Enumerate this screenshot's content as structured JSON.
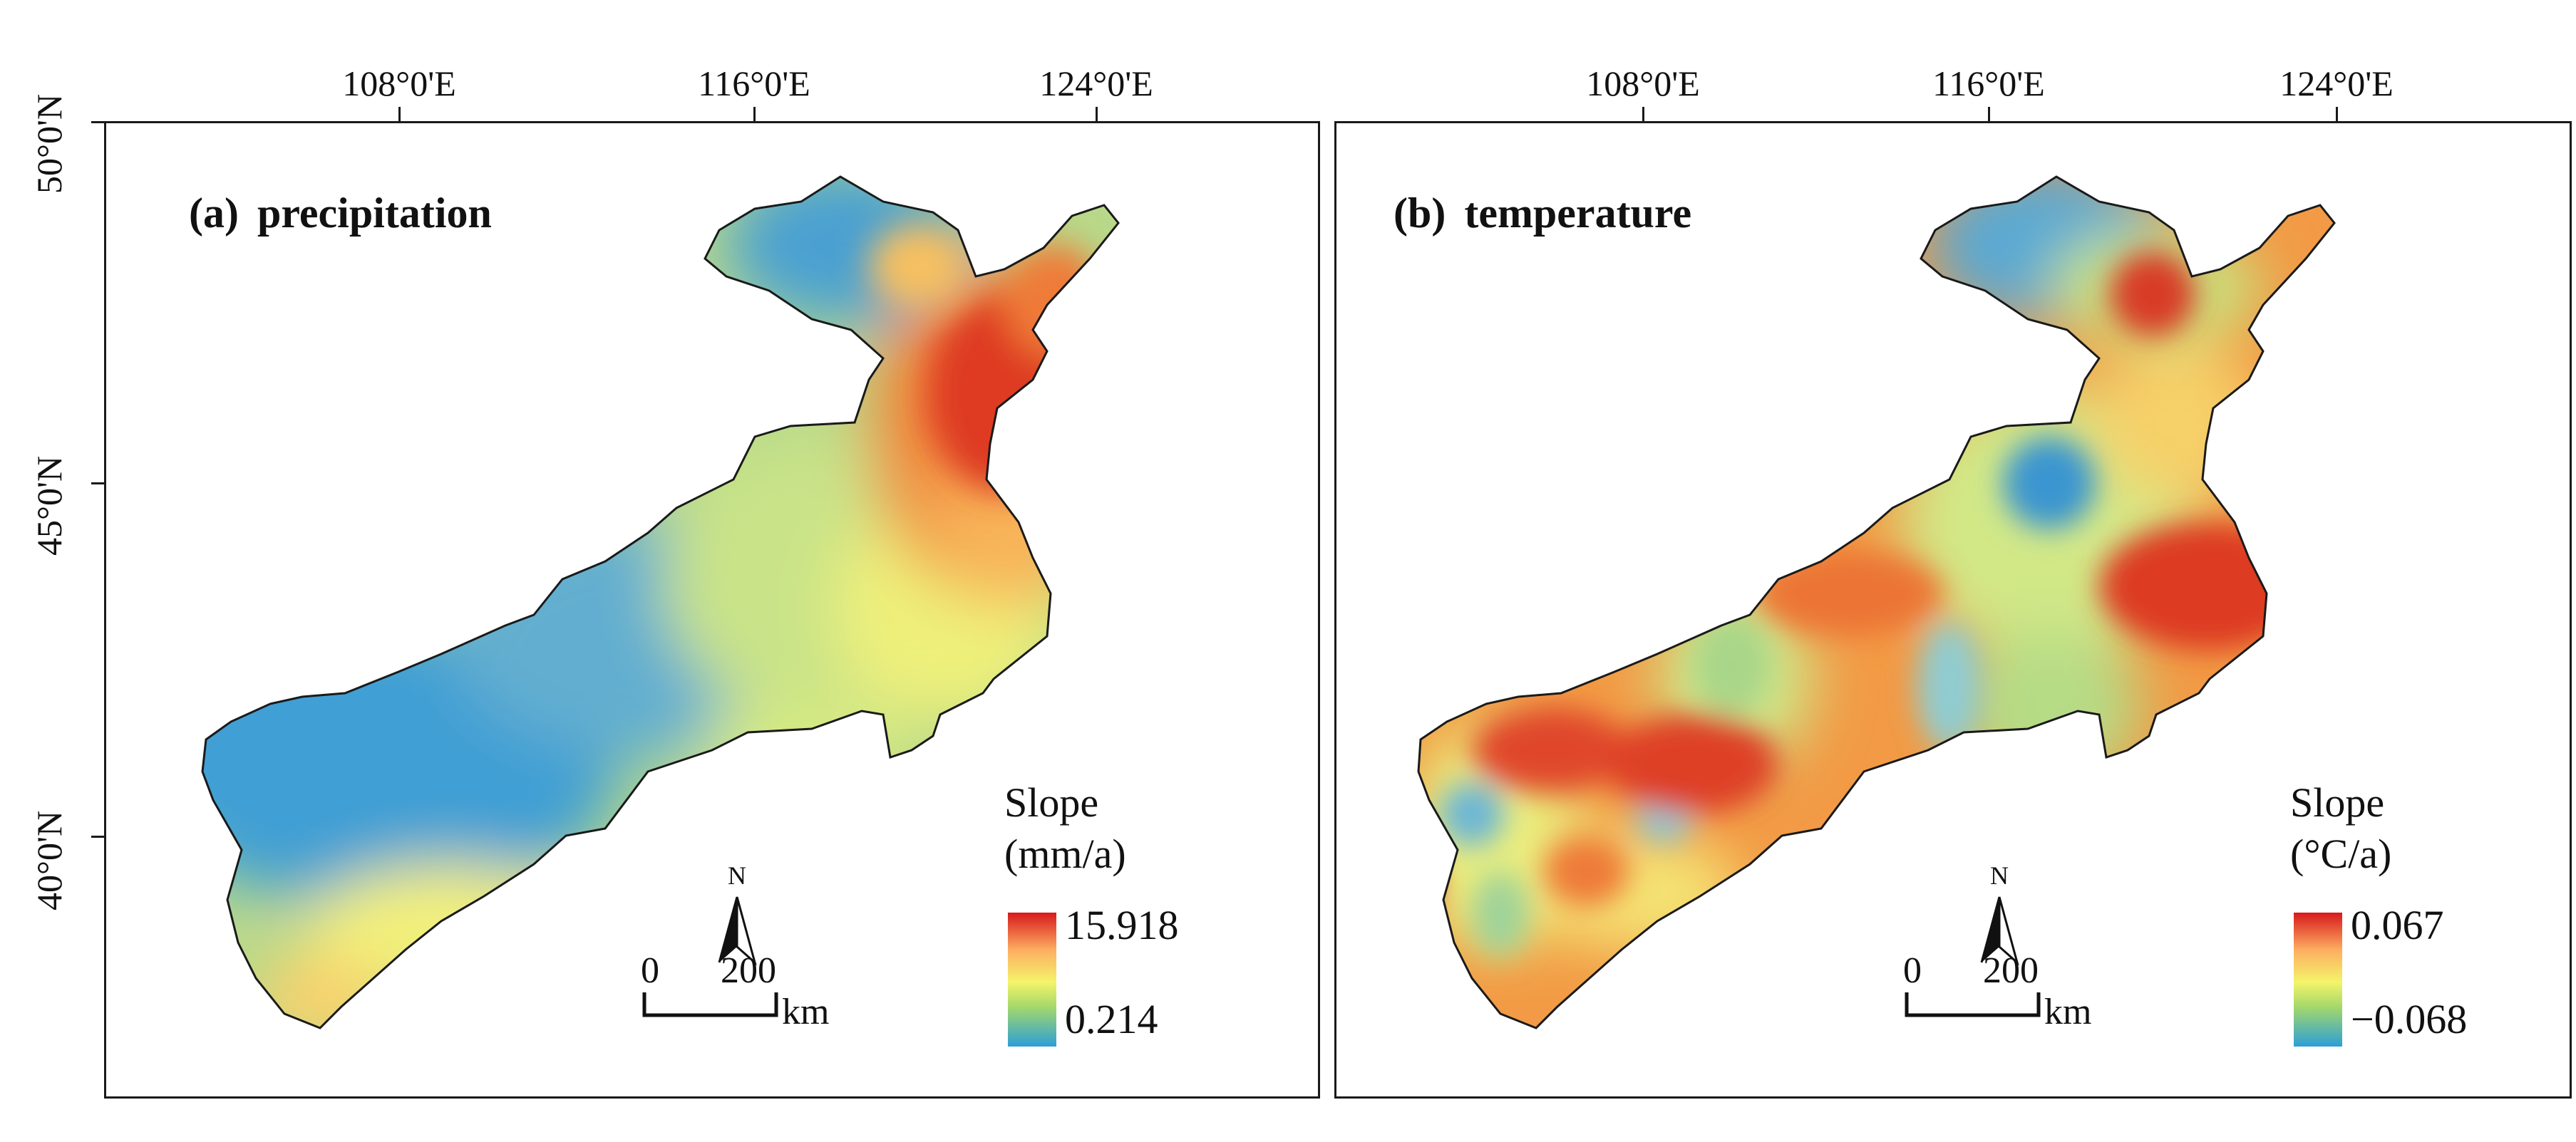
{
  "axes": {
    "longitude_ticks": [
      "108°0'E",
      "116°0'E",
      "124°0'E"
    ],
    "latitude_ticks": [
      "50°0'N",
      "45°0'N",
      "40°0'N"
    ]
  },
  "panels": [
    {
      "tag": "(a)",
      "title": "precipitation",
      "legend": {
        "label": "Slope",
        "unit": "(mm/a)",
        "max": "15.918",
        "min": "0.214"
      },
      "scale": {
        "start": "0",
        "end": "200",
        "unit": "km"
      },
      "north": "N"
    },
    {
      "tag": "(b)",
      "title": "temperature",
      "legend": {
        "label": "Slope",
        "unit": "(°C/a)",
        "max": "0.067",
        "min": "−0.068"
      },
      "scale": {
        "start": "0",
        "end": "200",
        "unit": "km"
      },
      "north": "N"
    }
  ],
  "colors": {
    "high": "#d7191c",
    "mid_high": "#fdae61",
    "mid": "#f4f46a",
    "mid_low": "#a6d96a",
    "low": "#2c9fd6"
  }
}
